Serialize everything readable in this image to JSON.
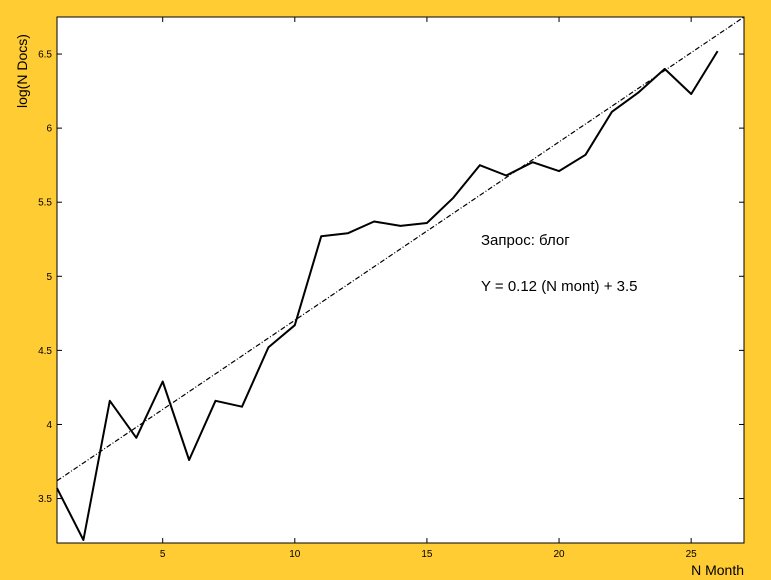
{
  "chart_data": {
    "type": "line",
    "xlabel": "N Month",
    "ylabel": "log(N Docs)",
    "xlim": [
      1,
      27
    ],
    "ylim": [
      3.2,
      6.75
    ],
    "x_ticks": [
      5,
      10,
      15,
      20,
      25
    ],
    "y_ticks": [
      3.5,
      4,
      4.5,
      5,
      5.5,
      6,
      6.5
    ],
    "grid": false,
    "series": [
      {
        "style": "solid",
        "color": "#000000",
        "x": [
          1,
          2,
          3,
          4,
          5,
          6,
          7,
          8,
          9,
          10,
          11,
          12,
          13,
          14,
          15,
          16,
          17,
          18,
          19,
          20,
          21,
          22,
          23,
          24,
          25,
          26
        ],
        "y": [
          3.57,
          3.22,
          4.16,
          3.91,
          4.29,
          3.76,
          4.16,
          4.12,
          4.52,
          4.67,
          5.27,
          5.29,
          5.37,
          5.34,
          5.36,
          5.53,
          5.75,
          5.68,
          5.77,
          5.71,
          5.82,
          6.11,
          6.24,
          6.4,
          6.23,
          6.52
        ]
      },
      {
        "style": "dashdot",
        "color": "#000000",
        "x": [
          1,
          27
        ],
        "y": [
          3.62,
          6.75
        ]
      }
    ],
    "annotations": [
      {
        "text": "Запрос: блог"
      },
      {
        "text": "Y = 0.12 (N mont) + 3.5"
      }
    ]
  }
}
